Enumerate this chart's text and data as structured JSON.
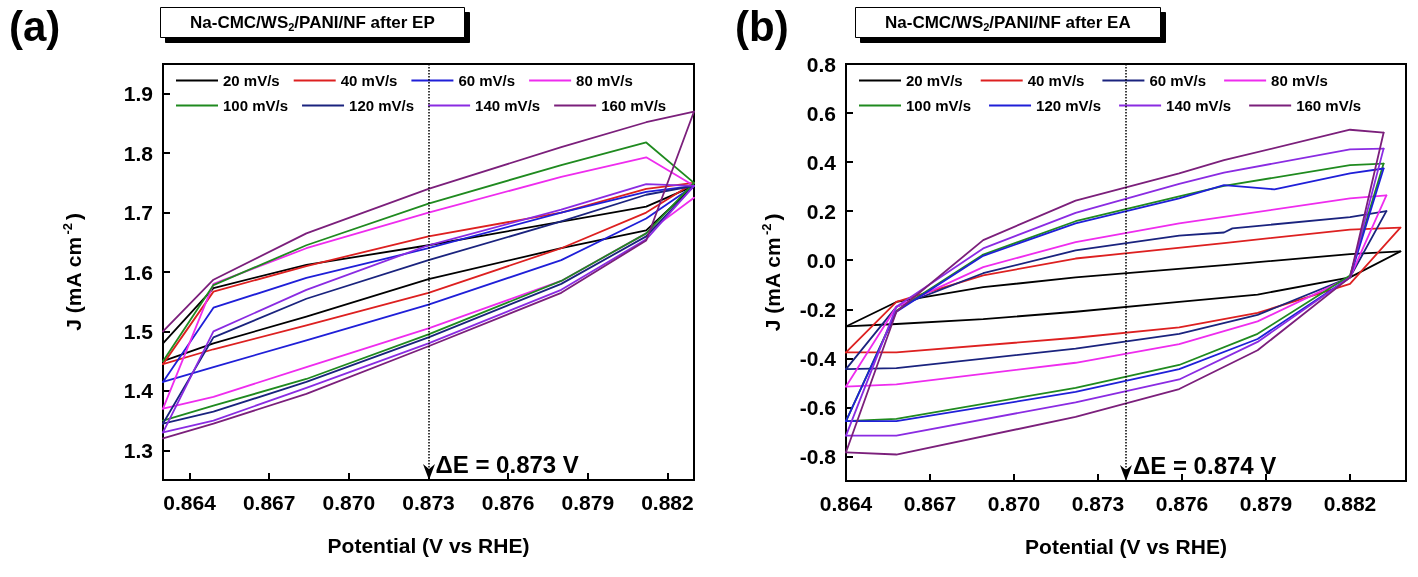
{
  "chart_data": [
    {
      "type": "line",
      "title": "Na-CMC/WS$_{2}$/PANI/NF after EP",
      "xlabel": "Potential (V vs RHE)",
      "ylabel": "J (mA cm$^{-2}$)",
      "annotations": [
        "(a)"
      ],
      "legend": "top",
      "xlim": [
        0.863,
        0.883
      ],
      "xticks": [
        0.864,
        0.867,
        {
          "value": 0.87,
          "label": "0.870"
        },
        0.873,
        0.876,
        0.879,
        0.882
      ],
      "ylim": [
        1.25,
        1.95
      ],
      "yticks": [
        1.3,
        1.4,
        1.5,
        1.6,
        1.7,
        1.8,
        1.9
      ],
      "ref_lines": [
        {
          "axis": "x",
          "value": 0.873,
          "label": "ΔE = 0.873 V",
          "line_style": "dotted",
          "color": "#000000"
        }
      ],
      "series": [
        {
          "name": "20 mV/s",
          "color": "#000000",
          "x": [
            0.863,
            0.8649,
            0.8684,
            0.873,
            0.8812,
            0.883
          ],
          "values": [
            1.48,
            1.573,
            1.612,
            1.645,
            1.71,
            1.745
          ]
        },
        {
          "color": "#000000",
          "x": [
            0.883,
            0.8812,
            0.878,
            0.873,
            0.8684,
            0.8649,
            0.863
          ],
          "values": [
            1.745,
            1.67,
            1.64,
            1.588,
            1.525,
            1.48,
            1.45
          ]
        },
        {
          "name": "40 mV/s",
          "color": "#dd2020",
          "x": [
            0.863,
            0.8649,
            0.8684,
            0.873,
            0.878,
            0.8812,
            0.883
          ],
          "values": [
            1.445,
            1.567,
            1.61,
            1.66,
            1.7,
            1.74,
            1.75
          ]
        },
        {
          "color": "#dd2020",
          "x": [
            0.883,
            0.8812,
            0.878,
            0.873,
            0.8684,
            0.8649,
            0.863
          ],
          "values": [
            1.75,
            1.7,
            1.64,
            1.565,
            1.51,
            1.47,
            1.445
          ]
        },
        {
          "name": "60 mV/s",
          "color": "#1f1fd8",
          "x": [
            0.863,
            0.8649,
            0.8684,
            0.873,
            0.878,
            0.8812,
            0.883
          ],
          "values": [
            1.415,
            1.54,
            1.59,
            1.64,
            1.7,
            1.735,
            1.745
          ]
        },
        {
          "color": "#1f1fd8",
          "x": [
            0.883,
            0.8812,
            0.878,
            0.873,
            0.8684,
            0.8649,
            0.863
          ],
          "values": [
            1.745,
            1.69,
            1.62,
            1.545,
            1.485,
            1.44,
            1.415
          ]
        },
        {
          "name": "80 mV/s",
          "color": "#ee2cee",
          "x": [
            0.863,
            0.8649,
            0.8684,
            0.873,
            0.878,
            0.8812,
            0.883
          ],
          "values": [
            1.37,
            1.58,
            1.64,
            1.7,
            1.76,
            1.793,
            1.745
          ]
        },
        {
          "color": "#ee2cee",
          "x": [
            0.883,
            0.8812,
            0.878,
            0.873,
            0.8684,
            0.8649,
            0.863
          ],
          "values": [
            1.725,
            1.665,
            1.585,
            1.505,
            1.44,
            1.39,
            1.37
          ]
        },
        {
          "name": "100 mV/s",
          "color": "#1f8a1f",
          "x": [
            0.863,
            0.8649,
            0.8684,
            0.873,
            0.878,
            0.8812,
            0.883
          ],
          "values": [
            1.45,
            1.578,
            1.645,
            1.715,
            1.78,
            1.818,
            1.75
          ]
        },
        {
          "color": "#1f8a1f",
          "x": [
            0.883,
            0.8812,
            0.878,
            0.873,
            0.8684,
            0.8649,
            0.863
          ],
          "values": [
            1.75,
            1.665,
            1.585,
            1.495,
            1.42,
            1.375,
            1.35
          ]
        },
        {
          "name": "120 mV/s",
          "color": "#1a237e",
          "x": [
            0.863,
            0.8649,
            0.8684,
            0.873,
            0.878,
            0.8812,
            0.883
          ],
          "values": [
            1.345,
            1.49,
            1.555,
            1.62,
            1.685,
            1.73,
            1.745
          ]
        },
        {
          "color": "#1a237e",
          "x": [
            0.883,
            0.8812,
            0.878,
            0.873,
            0.8684,
            0.8649,
            0.863
          ],
          "values": [
            1.745,
            1.66,
            1.58,
            1.49,
            1.415,
            1.365,
            1.345
          ]
        },
        {
          "name": "140 mV/s",
          "color": "#8a2be2",
          "x": [
            0.863,
            0.8649,
            0.8684,
            0.873,
            0.878,
            0.8812,
            0.883
          ],
          "values": [
            1.33,
            1.5,
            1.57,
            1.645,
            1.705,
            1.748,
            1.745
          ]
        },
        {
          "color": "#8a2be2",
          "x": [
            0.883,
            0.8812,
            0.878,
            0.873,
            0.8684,
            0.8649,
            0.863
          ],
          "values": [
            1.745,
            1.655,
            1.57,
            1.48,
            1.405,
            1.35,
            1.33
          ]
        },
        {
          "name": "160 mV/s",
          "color": "#7b1f7b",
          "x": [
            0.863,
            0.8649,
            0.8684,
            0.873,
            0.878,
            0.8812,
            0.883
          ],
          "values": [
            1.5,
            1.587,
            1.665,
            1.74,
            1.81,
            1.852,
            1.87
          ]
        },
        {
          "color": "#7b1f7b",
          "x": [
            0.883,
            0.8812,
            0.878,
            0.873,
            0.8684,
            0.8649,
            0.863
          ],
          "values": [
            1.87,
            1.653,
            1.565,
            1.475,
            1.395,
            1.345,
            1.32
          ]
        }
      ]
    },
    {
      "type": "line",
      "title": "Na-CMC/WS$_{2}$/PANI/NF after EA",
      "xlabel": "Potential (V vs RHE)",
      "ylabel": "J (mA cm$^{-2}$)",
      "annotations": [
        "(b)"
      ],
      "legend": "top",
      "xlim": [
        0.864,
        0.884
      ],
      "xticks": [
        0.864,
        0.867,
        {
          "value": 0.87,
          "label": "0.870"
        },
        0.873,
        0.876,
        0.879,
        0.882
      ],
      "ylim": [
        -0.9,
        0.8
      ],
      "yticks": [
        -0.8,
        -0.6,
        -0.4,
        -0.2,
        {
          "value": 0,
          "label": "0.0"
        },
        0.2,
        0.4,
        0.6,
        0.8
      ],
      "ref_lines": [
        {
          "axis": "x",
          "value": 0.874,
          "label": "ΔE = 0.874 V",
          "line_style": "dotted",
          "color": "#000000"
        }
      ],
      "series": [
        {
          "name": "20 mV/s",
          "color": "#000000",
          "x": [
            0.864,
            0.8658,
            0.8689,
            0.8722,
            0.8775,
            0.882,
            0.8838
          ],
          "values": [
            -0.27,
            -0.17,
            -0.11,
            -0.07,
            -0.02,
            0.025,
            0.036
          ]
        },
        {
          "color": "#000000",
          "x": [
            0.8838,
            0.882,
            0.8787,
            0.8759,
            0.8722,
            0.8689,
            0.8658,
            0.864
          ],
          "values": [
            0.036,
            -0.07,
            -0.14,
            -0.17,
            -0.21,
            -0.24,
            -0.26,
            -0.27
          ]
        },
        {
          "name": "40 mV/s",
          "color": "#dd2020",
          "x": [
            0.864,
            0.8658,
            0.8689,
            0.8722,
            0.8775,
            0.882,
            0.8838
          ],
          "values": [
            -0.376,
            -0.17,
            -0.062,
            0.007,
            0.07,
            0.125,
            0.133
          ]
        },
        {
          "color": "#dd2020",
          "x": [
            0.8838,
            0.882,
            0.8787,
            0.8759,
            0.8722,
            0.8658,
            0.864
          ],
          "values": [
            0.133,
            -0.096,
            -0.215,
            -0.274,
            -0.316,
            -0.376,
            -0.376
          ]
        },
        {
          "name": "60 mV/s",
          "color": "#1a237e",
          "x": [
            0.864,
            0.8658,
            0.8689,
            0.8722,
            0.8759,
            0.8775,
            0.8778,
            0.882,
            0.8833
          ],
          "values": [
            -0.444,
            -0.19,
            -0.053,
            0.04,
            0.1,
            0.113,
            0.13,
            0.176,
            0.2
          ]
        },
        {
          "color": "#1a237e",
          "x": [
            0.8833,
            0.882,
            0.8787,
            0.8759,
            0.8722,
            0.8658,
            0.864
          ],
          "values": [
            0.2,
            -0.07,
            -0.223,
            -0.3,
            -0.36,
            -0.44,
            -0.444
          ]
        },
        {
          "name": "80 mV/s",
          "color": "#ee2cee",
          "x": [
            0.864,
            0.8658,
            0.8689,
            0.8722,
            0.8759,
            0.882,
            0.8833
          ],
          "values": [
            -0.515,
            -0.19,
            -0.028,
            0.074,
            0.15,
            0.252,
            0.264
          ]
        },
        {
          "color": "#ee2cee",
          "x": [
            0.8833,
            0.882,
            0.8787,
            0.8759,
            0.8722,
            0.8658,
            0.864
          ],
          "values": [
            0.264,
            -0.07,
            -0.249,
            -0.342,
            -0.418,
            -0.506,
            -0.515
          ]
        },
        {
          "name": "100 mV/s",
          "color": "#1f8a1f",
          "x": [
            0.864,
            0.8658,
            0.8689,
            0.8722,
            0.8759,
            0.8775,
            0.882,
            0.8832
          ],
          "values": [
            -0.656,
            -0.206,
            0.023,
            0.159,
            0.26,
            0.303,
            0.388,
            0.394
          ]
        },
        {
          "color": "#1f8a1f",
          "x": [
            0.8832,
            0.882,
            0.8787,
            0.8759,
            0.8722,
            0.8658,
            0.864
          ],
          "values": [
            0.394,
            -0.062,
            -0.3,
            -0.427,
            -0.52,
            -0.647,
            -0.656
          ]
        },
        {
          "name": "120 mV/s",
          "color": "#1f1fd8",
          "x": [
            0.864,
            0.8658,
            0.8689,
            0.8722,
            0.8759,
            0.8775,
            0.8793,
            0.882,
            0.8832
          ],
          "values": [
            -0.656,
            -0.21,
            0.018,
            0.15,
            0.252,
            0.306,
            0.289,
            0.354,
            0.374
          ]
        },
        {
          "color": "#1f1fd8",
          "x": [
            0.8832,
            0.882,
            0.8787,
            0.8759,
            0.8722,
            0.8658,
            0.864
          ],
          "values": [
            0.374,
            -0.07,
            -0.321,
            -0.444,
            -0.537,
            -0.656,
            -0.656
          ]
        },
        {
          "name": "140 mV/s",
          "color": "#8a2be2",
          "x": [
            0.864,
            0.8658,
            0.8689,
            0.8722,
            0.8759,
            0.8775,
            0.882,
            0.8832
          ],
          "values": [
            -0.715,
            -0.19,
            0.048,
            0.193,
            0.311,
            0.357,
            0.452,
            0.455
          ]
        },
        {
          "color": "#8a2be2",
          "x": [
            0.8832,
            0.882,
            0.8787,
            0.8759,
            0.8722,
            0.8658,
            0.864
          ],
          "values": [
            0.455,
            -0.07,
            -0.333,
            -0.486,
            -0.579,
            -0.715,
            -0.715
          ]
        },
        {
          "name": "160 mV/s",
          "color": "#7b1f7b",
          "x": [
            0.864,
            0.8658,
            0.8689,
            0.8722,
            0.8759,
            0.8775,
            0.882,
            0.8832
          ],
          "values": [
            -0.783,
            -0.21,
            0.082,
            0.243,
            0.354,
            0.408,
            0.532,
            0.52
          ]
        },
        {
          "color": "#7b1f7b",
          "x": [
            0.8832,
            0.882,
            0.8787,
            0.8759,
            0.8722,
            0.8658,
            0.864
          ],
          "values": [
            0.52,
            -0.07,
            -0.367,
            -0.525,
            -0.639,
            -0.792,
            -0.783
          ]
        }
      ]
    }
  ]
}
